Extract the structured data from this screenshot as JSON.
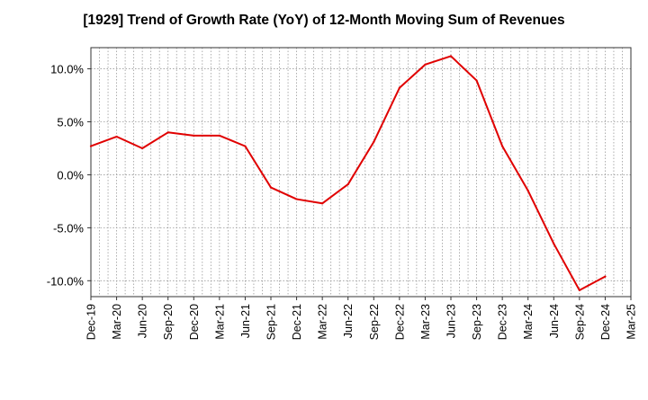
{
  "chart_data": {
    "type": "line",
    "title": "[1929]  Trend of Growth Rate (YoY) of 12-Month Moving Sum of Revenues",
    "xlabel": "",
    "ylabel": "",
    "x_ticks": [
      "Dec-19",
      "Mar-20",
      "Jun-20",
      "Sep-20",
      "Dec-20",
      "Mar-21",
      "Jun-21",
      "Sep-21",
      "Dec-21",
      "Mar-22",
      "Jun-22",
      "Sep-22",
      "Dec-22",
      "Mar-23",
      "Jun-23",
      "Sep-23",
      "Dec-23",
      "Mar-24",
      "Jun-24",
      "Sep-24",
      "Dec-24",
      "Mar-25"
    ],
    "y_ticks": [
      10,
      5,
      0,
      -5,
      -10
    ],
    "y_tick_labels": [
      "10.0%",
      "5.0%",
      "0.0%",
      "-5.0%",
      "-10.0%"
    ],
    "ylim": [
      -11.5,
      12.0
    ],
    "grid": true,
    "series": [
      {
        "color": "#e00000",
        "x": [
          "Dec-19",
          "Mar-20",
          "Jun-20",
          "Sep-20",
          "Dec-20",
          "Mar-21",
          "Jun-21",
          "Sep-21",
          "Dec-21",
          "Mar-22",
          "Jun-22",
          "Sep-22",
          "Dec-22",
          "Mar-23",
          "Jun-23",
          "Sep-23",
          "Dec-23",
          "Mar-24",
          "Jun-24",
          "Sep-24",
          "Dec-24"
        ],
        "values": [
          2.7,
          3.6,
          2.5,
          4.0,
          3.7,
          3.7,
          2.7,
          -1.2,
          -2.3,
          -2.7,
          -0.9,
          3.1,
          8.2,
          10.4,
          11.2,
          8.9,
          2.7,
          -1.5,
          -6.5,
          -10.9,
          -9.6
        ]
      }
    ]
  }
}
